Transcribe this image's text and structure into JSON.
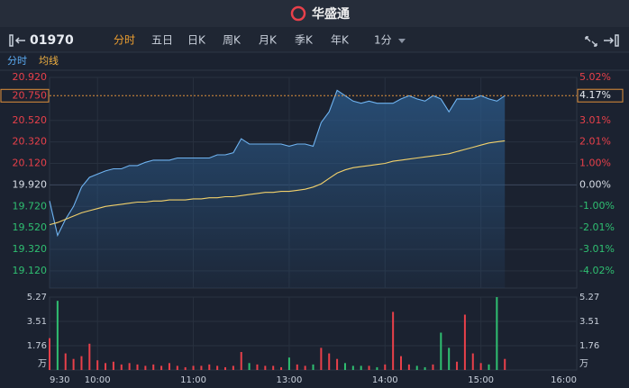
{
  "header": {
    "logo": "华盛通",
    "symbol": "01970",
    "tabs": [
      "分时",
      "五日",
      "日K",
      "周K",
      "月K",
      "季K",
      "年K"
    ],
    "interval": "1分"
  },
  "chart_data": {
    "type": "line",
    "x": [
      0,
      5,
      10,
      15,
      20,
      25,
      30,
      35,
      40,
      45,
      50,
      55,
      60,
      65,
      70,
      75,
      80,
      85,
      90,
      95,
      100,
      105,
      110,
      115,
      120,
      125,
      130,
      135,
      140,
      145,
      150,
      155,
      160,
      165,
      170,
      175,
      180,
      185,
      190,
      195,
      200,
      205,
      210,
      215,
      220,
      225,
      230,
      235,
      240,
      245,
      250,
      255,
      260,
      265,
      270,
      275,
      280,
      285
    ],
    "xlim": [
      0,
      330
    ],
    "xticks": [
      {
        "value": 0,
        "label": "9:30"
      },
      {
        "value": 30,
        "label": "10:00"
      },
      {
        "value": 90,
        "label": "11:00"
      },
      {
        "value": 150,
        "label": "13:00"
      },
      {
        "value": 210,
        "label": "14:00"
      },
      {
        "value": 270,
        "label": "15:00"
      },
      {
        "value": 330,
        "label": "16:00"
      }
    ],
    "series": [
      {
        "name": "分时",
        "color": "#6fb4f2",
        "values": [
          19.77,
          19.45,
          19.6,
          19.72,
          19.9,
          19.99,
          20.02,
          20.05,
          20.07,
          20.07,
          20.1,
          20.1,
          20.13,
          20.15,
          20.15,
          20.15,
          20.17,
          20.17,
          20.17,
          20.17,
          20.17,
          20.2,
          20.2,
          20.22,
          20.35,
          20.3,
          20.3,
          20.3,
          20.3,
          20.3,
          20.28,
          20.3,
          20.3,
          20.28,
          20.5,
          20.6,
          20.8,
          20.75,
          20.7,
          20.68,
          20.7,
          20.68,
          20.68,
          20.68,
          20.72,
          20.75,
          20.72,
          20.7,
          20.75,
          20.72,
          20.6,
          20.72,
          20.72,
          20.72,
          20.75,
          20.72,
          20.7,
          20.75
        ]
      },
      {
        "name": "均线",
        "color": "#f2d16b",
        "values": [
          19.55,
          19.57,
          19.6,
          19.63,
          19.66,
          19.68,
          19.7,
          19.72,
          19.73,
          19.74,
          19.75,
          19.76,
          19.76,
          19.77,
          19.77,
          19.78,
          19.78,
          19.78,
          19.79,
          19.79,
          19.8,
          19.8,
          19.81,
          19.81,
          19.82,
          19.83,
          19.84,
          19.85,
          19.85,
          19.86,
          19.86,
          19.87,
          19.88,
          19.9,
          19.93,
          19.98,
          20.03,
          20.06,
          20.08,
          20.09,
          20.1,
          20.11,
          20.12,
          20.14,
          20.15,
          20.16,
          20.17,
          20.18,
          20.19,
          20.2,
          20.21,
          20.23,
          20.25,
          20.27,
          20.29,
          20.31,
          20.32,
          20.33
        ]
      }
    ],
    "ylim": [
      18.96,
      20.92
    ],
    "yticks": [
      {
        "value": 20.92,
        "label": "20.920"
      },
      {
        "value": 20.52,
        "label": "20.520"
      },
      {
        "value": 20.32,
        "label": "20.320"
      },
      {
        "value": 20.12,
        "label": "20.120"
      },
      {
        "value": 19.92,
        "label": "19.920"
      },
      {
        "value": 19.72,
        "label": "19.720"
      },
      {
        "value": 19.52,
        "label": "19.520"
      },
      {
        "value": 19.32,
        "label": "19.320"
      },
      {
        "value": 19.12,
        "label": "19.120"
      }
    ],
    "y2lim": [
      -4.82,
      5.02
    ],
    "y2ticks": [
      {
        "value": 5.02,
        "label": "5.02%"
      },
      {
        "value": 3.01,
        "label": "3.01%"
      },
      {
        "value": 2.01,
        "label": "2.01%"
      },
      {
        "value": 1.0,
        "label": "1.00%"
      },
      {
        "value": 0.0,
        "label": "0.00%"
      },
      {
        "value": -1.0,
        "label": "-1.00%"
      },
      {
        "value": -2.01,
        "label": "-2.01%"
      },
      {
        "value": -3.01,
        "label": "-3.01%"
      },
      {
        "value": -4.02,
        "label": "-4.02%"
      }
    ],
    "last_price": {
      "value": 20.75,
      "label": "20.750"
    },
    "last_change": {
      "value": 4.17,
      "label": "4.17%"
    },
    "up_color": "#e8404a",
    "down_color": "#2fbf71",
    "flat_color": "#d8dde6",
    "grid": true,
    "volume": {
      "unit": "万",
      "ylim": [
        0,
        5.27
      ],
      "yticks": [
        5.27,
        3.51,
        1.76
      ],
      "values": [
        2.3,
        5.0,
        1.2,
        0.8,
        1.0,
        1.9,
        0.7,
        0.5,
        0.6,
        0.4,
        0.5,
        0.4,
        0.3,
        0.4,
        0.3,
        0.5,
        0.3,
        0.2,
        0.3,
        0.3,
        0.4,
        0.3,
        0.2,
        0.3,
        1.3,
        0.5,
        0.4,
        0.3,
        0.3,
        0.2,
        0.9,
        0.4,
        0.3,
        0.4,
        1.6,
        1.2,
        0.8,
        0.5,
        0.3,
        0.3,
        0.3,
        0.2,
        0.4,
        4.2,
        1.0,
        0.4,
        0.3,
        0.2,
        0.4,
        2.7,
        1.6,
        0.6,
        4.0,
        1.2,
        0.5,
        0.4,
        5.27,
        0.8
      ]
    }
  }
}
